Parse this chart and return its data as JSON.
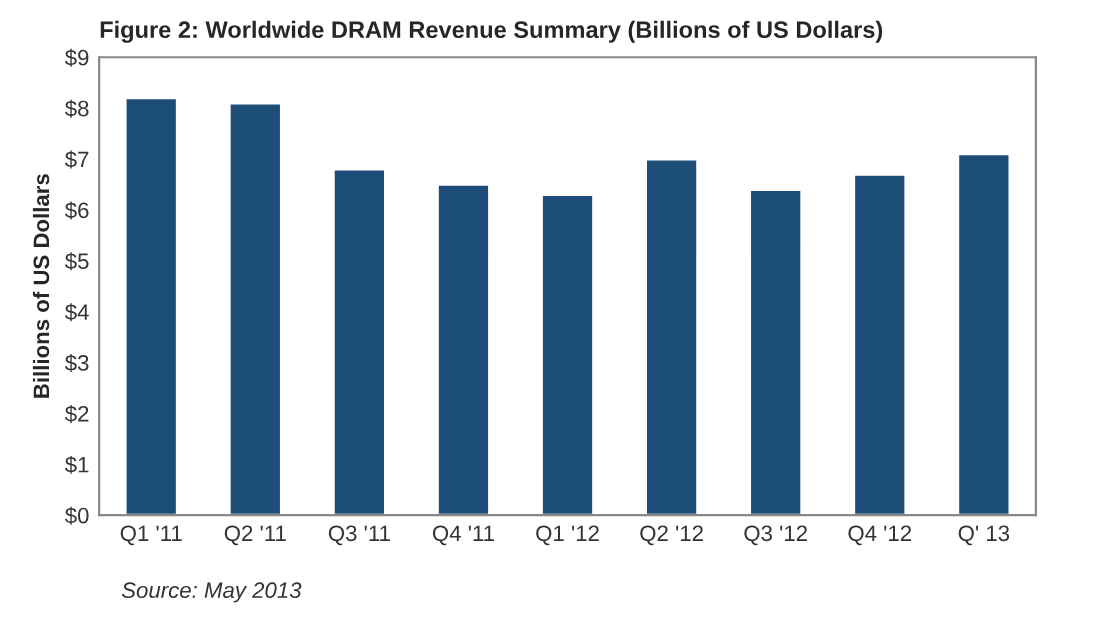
{
  "chart_data": {
    "type": "bar",
    "title": "Figure 2: Worldwide DRAM Revenue Summary (Billions of US Dollars)",
    "ylabel": "Billions of US Dollars",
    "categories": [
      "Q1 '11",
      "Q2 '11",
      "Q3 '11",
      "Q4 '11",
      "Q1 '12",
      "Q2 '12",
      "Q3 '12",
      "Q4 '12",
      "Q' 13"
    ],
    "values": [
      8.2,
      8.1,
      6.8,
      6.5,
      6.3,
      7.0,
      6.4,
      6.7,
      7.1
    ],
    "color": "#1c4e78",
    "ylim": [
      0,
      9
    ],
    "yticks": [
      {
        "value": 0,
        "label": "$0"
      },
      {
        "value": 1,
        "label": "$1"
      },
      {
        "value": 2,
        "label": "$2"
      },
      {
        "value": 3,
        "label": "$3"
      },
      {
        "value": 4,
        "label": "$4"
      },
      {
        "value": 5,
        "label": "$5"
      },
      {
        "value": 6,
        "label": "$6"
      },
      {
        "value": 7,
        "label": "$7"
      },
      {
        "value": 8,
        "label": "$8"
      },
      {
        "value": 9,
        "label": "$9"
      }
    ],
    "grid": false,
    "annotations": [
      "Source: May 2013"
    ]
  }
}
